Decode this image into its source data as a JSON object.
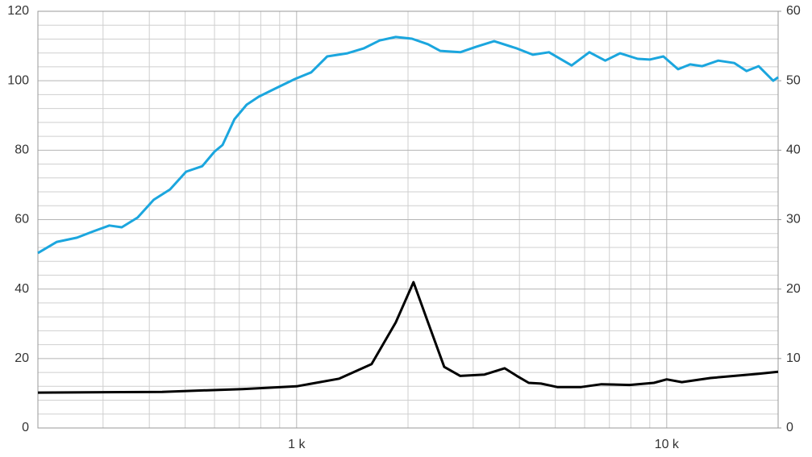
{
  "chart_data": {
    "type": "line",
    "log_x": true,
    "grid": true,
    "xlim": [
      200,
      20000
    ],
    "xticks": [
      {
        "value": 1000,
        "label": "1 k"
      },
      {
        "value": 10000,
        "label": "10 k"
      }
    ],
    "xminorticks": [
      200,
      300,
      400,
      500,
      600,
      700,
      800,
      900,
      2000,
      3000,
      4000,
      5000,
      6000,
      7000,
      8000,
      9000,
      20000
    ],
    "ylim": [
      0,
      120
    ],
    "yticks": [
      0,
      20,
      40,
      60,
      80,
      100,
      120
    ],
    "yminorticks": [
      4,
      8,
      12,
      16,
      24,
      28,
      32,
      36,
      44,
      48,
      52,
      56,
      64,
      68,
      72,
      76,
      84,
      88,
      92,
      96,
      104,
      108,
      112,
      116
    ],
    "y2lim": [
      0,
      60
    ],
    "y2ticks": [
      0,
      10,
      20,
      30,
      40,
      50,
      60
    ],
    "series": [
      {
        "color": "#1ba6de",
        "axis": "y",
        "x": [
          200,
          225,
          255,
          282,
          312,
          337,
          372,
          411,
          455,
          503,
          556,
          600,
          631,
          679,
          733,
          790,
          873,
          990,
          1095,
          1210,
          1372,
          1517,
          1676,
          1853,
          2049,
          2265,
          2442,
          2768,
          3061,
          3418,
          3936,
          4348,
          4808,
          5535,
          6180,
          6823,
          7477,
          8350,
          8995,
          9797,
          10730,
          11570,
          12470,
          13780,
          15230,
          16430,
          17710,
          19400,
          20000
        ],
        "values": [
          50.4,
          53.6,
          54.8,
          56.6,
          58.3,
          57.8,
          60.6,
          65.7,
          68.7,
          73.8,
          75.4,
          79.6,
          81.5,
          88.9,
          93.1,
          95.4,
          97.7,
          100.5,
          102.4,
          107,
          107.9,
          109.3,
          111.6,
          112.6,
          112.1,
          110.5,
          108.6,
          108.2,
          109.8,
          111.4,
          109.3,
          107.5,
          108.2,
          104.4,
          108.2,
          105.8,
          107.9,
          106.3,
          106.1,
          107,
          103.3,
          104.7,
          104.2,
          105.8,
          105.1,
          102.8,
          104.2,
          100,
          101
        ]
      },
      {
        "color": "#000000",
        "axis": "y2",
        "x": [
          200,
          433,
          715,
          1000,
          1304,
          1594,
          1853,
          2069,
          2265,
          2505,
          2768,
          3219,
          3648,
          3936,
          4239,
          4571,
          5058,
          5875,
          6668,
          7937,
          9232,
          10000,
          10990,
          13120,
          15230,
          17710,
          20000
        ],
        "values": [
          5.1,
          5.2,
          5.6,
          6.0,
          7.1,
          9.2,
          15.2,
          21.0,
          15.2,
          8.8,
          7.5,
          7.7,
          8.6,
          7.5,
          6.5,
          6.4,
          5.9,
          5.9,
          6.3,
          6.2,
          6.5,
          7.0,
          6.6,
          7.2,
          7.5,
          7.8,
          8.1
        ]
      }
    ]
  }
}
